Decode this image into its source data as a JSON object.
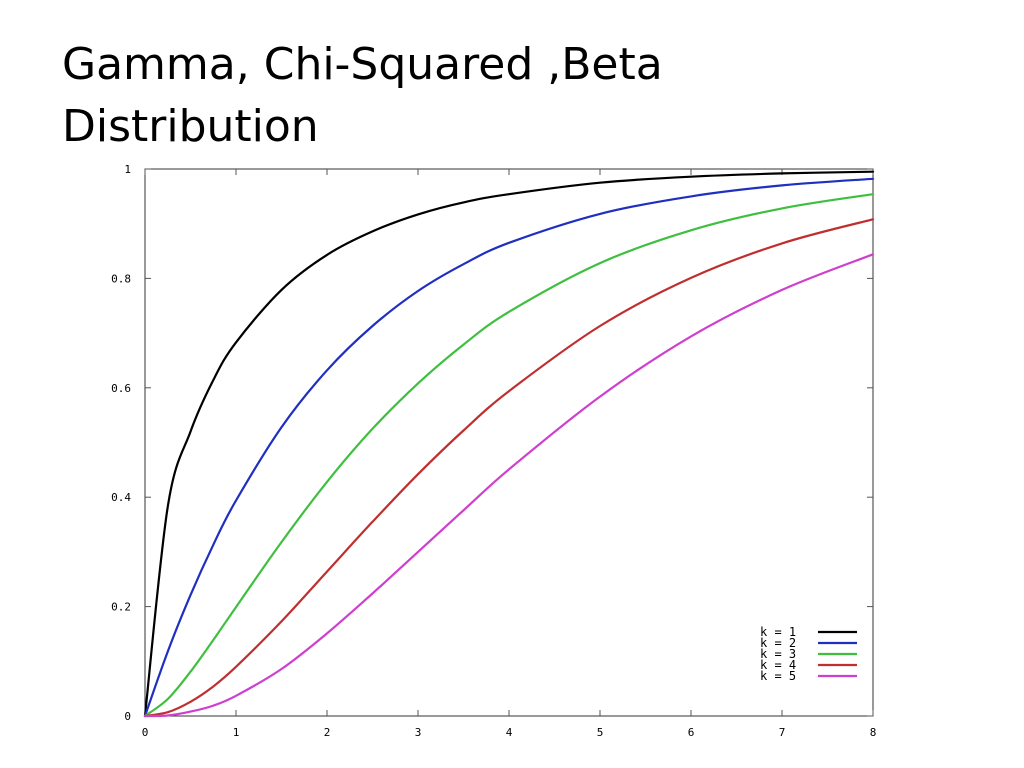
{
  "slide": {
    "title_line1": "Gamma, Chi-Squared ,Beta",
    "title_line2": "Distribution"
  },
  "chart_data": {
    "type": "line",
    "title": "",
    "xlabel": "",
    "ylabel": "",
    "xlim": [
      0,
      8
    ],
    "ylim": [
      0,
      1
    ],
    "xticks": [
      "0",
      "1",
      "2",
      "3",
      "4",
      "5",
      "6",
      "7",
      "8"
    ],
    "yticks": [
      "0",
      "0.2",
      "0.4",
      "0.6",
      "0.8",
      "1"
    ],
    "grid": false,
    "legend_position": "bottom-right",
    "x": [
      0,
      0.25,
      0.5,
      0.75,
      1,
      1.5,
      2,
      2.5,
      3,
      3.5,
      4,
      5,
      6,
      7,
      8
    ],
    "series": [
      {
        "name": "k = 1",
        "color": "#000000",
        "values": [
          0,
          0.383,
          0.52,
          0.614,
          0.683,
          0.779,
          0.843,
          0.886,
          0.917,
          0.939,
          0.954,
          0.975,
          0.986,
          0.992,
          0.995
        ]
      },
      {
        "name": "k = 2",
        "color": "#1f2fbf",
        "values": [
          0,
          0.118,
          0.221,
          0.313,
          0.394,
          0.528,
          0.632,
          0.713,
          0.777,
          0.826,
          0.865,
          0.918,
          0.95,
          0.97,
          0.982
        ]
      },
      {
        "name": "k = 3",
        "color": "#3fbf3f",
        "values": [
          0,
          0.031,
          0.081,
          0.139,
          0.199,
          0.318,
          0.428,
          0.525,
          0.608,
          0.679,
          0.739,
          0.828,
          0.888,
          0.928,
          0.954
        ]
      },
      {
        "name": "k = 4",
        "color": "#bf2f2f",
        "values": [
          0,
          0.007,
          0.026,
          0.054,
          0.09,
          0.173,
          0.264,
          0.355,
          0.442,
          0.522,
          0.594,
          0.713,
          0.801,
          0.864,
          0.908
        ]
      },
      {
        "name": "k = 5",
        "color": "#cf3fcf",
        "values": [
          0,
          0.001,
          0.008,
          0.019,
          0.037,
          0.086,
          0.151,
          0.224,
          0.3,
          0.376,
          0.451,
          0.584,
          0.694,
          0.779,
          0.844
        ]
      }
    ]
  }
}
